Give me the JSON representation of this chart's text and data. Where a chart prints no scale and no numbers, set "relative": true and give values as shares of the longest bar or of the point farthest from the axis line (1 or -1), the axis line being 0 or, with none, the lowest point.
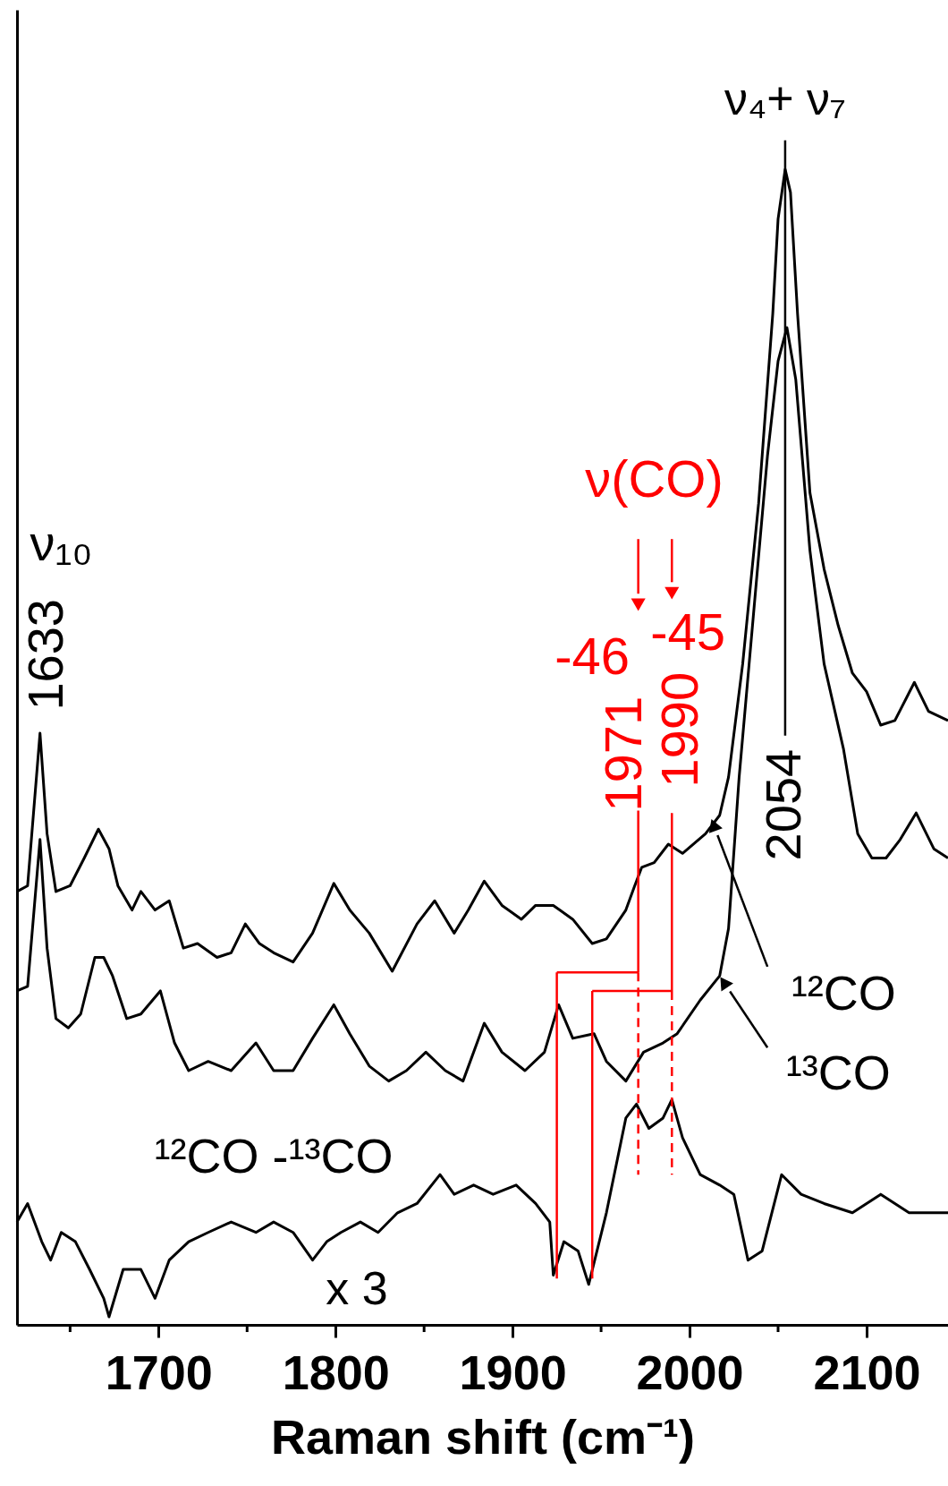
{
  "chart_data": {
    "type": "line",
    "relative": true,
    "xlabel": "Raman shift (cm⁻¹)",
    "xlim": [
      1620,
      2146
    ],
    "xticks": [
      {
        "value": 1650,
        "label": null
      },
      1700,
      {
        "value": 1750,
        "label": null
      },
      1800,
      {
        "value": 1850,
        "label": null
      },
      1900,
      {
        "value": 1950,
        "label": null
      },
      2000,
      {
        "value": 2050,
        "label": null
      },
      2100
    ],
    "series": [
      {
        "color": "#000000",
        "x": [
          1620,
          1626,
          1633,
          1637,
          1642,
          1650,
          1658,
          1666,
          1672,
          1677,
          1685,
          1690,
          1698,
          1706,
          1714,
          1722,
          1733,
          1741,
          1749,
          1757,
          1765,
          1776,
          1787,
          1799,
          1808,
          1819,
          1832,
          1846,
          1856,
          1867,
          1875,
          1884,
          1894,
          1905,
          1913,
          1923,
          1934,
          1945,
          1953,
          1964,
          1969,
          1973,
          1980,
          1988,
          1996,
          2009,
          2017,
          2022,
          2030,
          2039,
          2047,
          2050,
          2054,
          2057,
          2061,
          2068,
          2076,
          2084,
          2092,
          2100,
          2108,
          2116,
          2127,
          2135,
          2146
        ],
        "values": [
          0.375,
          0.38,
          0.512,
          0.425,
          0.375,
          0.38,
          0.404,
          0.429,
          0.412,
          0.38,
          0.359,
          0.375,
          0.359,
          0.367,
          0.326,
          0.33,
          0.318,
          0.322,
          0.347,
          0.33,
          0.322,
          0.314,
          0.339,
          0.382,
          0.359,
          0.339,
          0.306,
          0.347,
          0.367,
          0.339,
          0.359,
          0.384,
          0.363,
          0.351,
          0.363,
          0.363,
          0.351,
          0.33,
          0.334,
          0.359,
          0.38,
          0.396,
          0.4,
          0.416,
          0.408,
          0.425,
          0.441,
          0.474,
          0.572,
          0.711,
          0.875,
          0.957,
          1.0,
          0.98,
          0.875,
          0.72,
          0.654,
          0.605,
          0.564,
          0.548,
          0.519,
          0.523,
          0.556,
          0.531,
          0.523
        ]
      },
      {
        "color": "#000000",
        "x": [
          1620,
          1626,
          1633,
          1637,
          1642,
          1649,
          1656,
          1664,
          1669,
          1674,
          1682,
          1690,
          1701,
          1709,
          1717,
          1728,
          1741,
          1755,
          1765,
          1776,
          1787,
          1799,
          1808,
          1819,
          1830,
          1840,
          1851,
          1862,
          1872,
          1884,
          1894,
          1907,
          1918,
          1926,
          1934,
          1946,
          1953,
          1964,
          1974,
          1985,
          1993,
          2006,
          2017,
          2022,
          2028,
          2036,
          2044,
          2050,
          2055,
          2060,
          2068,
          2076,
          2087,
          2095,
          2103,
          2111,
          2119,
          2128,
          2138,
          2146
        ],
        "values": [
          0.289,
          0.293,
          0.42,
          0.326,
          0.265,
          0.257,
          0.269,
          0.318,
          0.318,
          0.302,
          0.265,
          0.269,
          0.289,
          0.244,
          0.22,
          0.228,
          0.22,
          0.244,
          0.22,
          0.22,
          0.248,
          0.277,
          0.252,
          0.224,
          0.211,
          0.22,
          0.236,
          0.22,
          0.211,
          0.261,
          0.236,
          0.22,
          0.236,
          0.277,
          0.248,
          0.252,
          0.228,
          0.211,
          0.236,
          0.244,
          0.252,
          0.281,
          0.302,
          0.343,
          0.474,
          0.613,
          0.752,
          0.834,
          0.863,
          0.818,
          0.67,
          0.572,
          0.498,
          0.425,
          0.404,
          0.404,
          0.42,
          0.443,
          0.412,
          0.404
        ]
      },
      {
        "color": "#000000",
        "x": [
          1620,
          1626,
          1634,
          1639,
          1645,
          1653,
          1661,
          1669,
          1672,
          1680,
          1690,
          1698,
          1706,
          1717,
          1728,
          1741,
          1755,
          1765,
          1776,
          1787,
          1795,
          1803,
          1814,
          1824,
          1835,
          1846,
          1859,
          1867,
          1878,
          1889,
          1902,
          1913,
          1921,
          1923,
          1929,
          1937,
          1943,
          1953,
          1964,
          1970,
          1977,
          1985,
          1990,
          1996,
          2006,
          2017,
          2025,
          2033,
          2041,
          2052,
          2063,
          2076,
          2092,
          2108,
          2124,
          2146
        ],
        "values": [
          0.089,
          0.105,
          0.072,
          0.056,
          0.08,
          0.072,
          0.048,
          0.023,
          0.007,
          0.048,
          0.048,
          0.023,
          0.056,
          0.072,
          0.08,
          0.089,
          0.08,
          0.089,
          0.08,
          0.056,
          0.072,
          0.08,
          0.089,
          0.08,
          0.097,
          0.105,
          0.13,
          0.113,
          0.121,
          0.113,
          0.121,
          0.105,
          0.089,
          0.043,
          0.072,
          0.064,
          0.035,
          0.097,
          0.179,
          0.191,
          0.17,
          0.179,
          0.195,
          0.162,
          0.13,
          0.121,
          0.113,
          0.056,
          0.064,
          0.13,
          0.113,
          0.105,
          0.097,
          0.113,
          0.097,
          0.097
        ]
      }
    ],
    "annotations": [
      "ν₁₀",
      "1633",
      "ν₄+ ν₇",
      "2054",
      "ν(CO)",
      "-46",
      "-45",
      "1971",
      "1990",
      "x 3",
      "¹²CO",
      "¹³CO",
      "¹²CO -¹³CO"
    ]
  }
}
